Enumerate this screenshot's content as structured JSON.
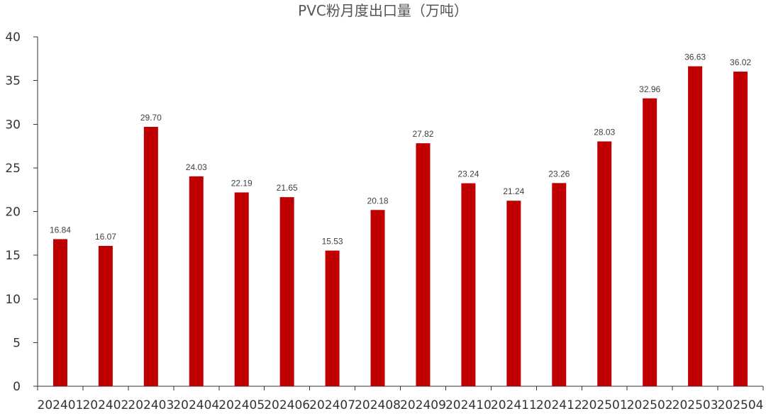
{
  "chart_data": {
    "type": "bar",
    "title": "PVC粉月度出口量（万吨）",
    "xlabel": "",
    "ylabel": "",
    "categories": [
      "202401",
      "202402",
      "202403",
      "202404",
      "202405",
      "202406",
      "202407",
      "202408",
      "202409",
      "202410",
      "202411",
      "202412",
      "202501",
      "202502",
      "202503",
      "202504"
    ],
    "values": [
      16.84,
      16.07,
      29.7,
      24.03,
      22.19,
      21.65,
      15.53,
      20.18,
      27.82,
      23.24,
      21.24,
      23.26,
      28.03,
      32.96,
      36.63,
      36.02
    ],
    "value_labels": [
      "16.84",
      "16.07",
      "29.70",
      "24.03",
      "22.19",
      "21.65",
      "15.53",
      "20.18",
      "27.82",
      "23.24",
      "21.24",
      "23.26",
      "28.03",
      "32.96",
      "36.63",
      "36.02"
    ],
    "ylim": [
      0,
      40
    ],
    "yticks": [
      "0",
      "5",
      "10",
      "15",
      "20",
      "25",
      "30",
      "35",
      "40"
    ],
    "grid": false,
    "legend": "none",
    "bar_color": "#C00000"
  }
}
